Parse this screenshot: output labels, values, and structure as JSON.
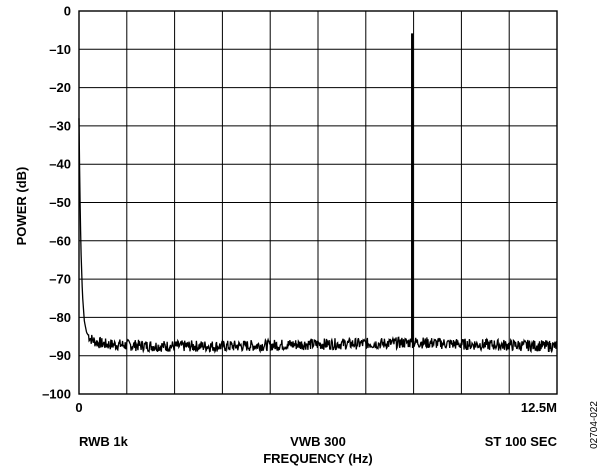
{
  "chart_data": {
    "type": "line",
    "title": "",
    "xlabel": "FREQUENCY (Hz)",
    "ylabel": "POWER (dB)",
    "xlim": [
      0,
      12.5
    ],
    "x_unit": "MHz",
    "ylim": [
      -100,
      0
    ],
    "y_ticks": [
      0,
      -10,
      -20,
      -30,
      -40,
      -50,
      -60,
      -70,
      -80,
      -90,
      -100
    ],
    "y_tick_labels": [
      "0",
      "–10",
      "–20",
      "–30",
      "–40",
      "–50",
      "–60",
      "–70",
      "–80",
      "–90",
      "–100"
    ],
    "x_tick_labels": [
      {
        "value": 0,
        "label": "0"
      },
      {
        "value": 12.5,
        "label": "12.5M"
      }
    ],
    "grid": true,
    "x_gridlines": 10,
    "annotations": {
      "left": "RWB 1k",
      "center": "VWB 300",
      "right": "ST 100 SEC"
    },
    "figure_code": "02704-022",
    "series": [
      {
        "color": "#000000",
        "noise_floor_db": -87,
        "noise_ripple_db": 1.5,
        "points": [
          {
            "x": 0.0,
            "y": -28
          },
          {
            "x": 0.02,
            "y": -45
          },
          {
            "x": 0.05,
            "y": -62
          },
          {
            "x": 0.09,
            "y": -74
          },
          {
            "x": 0.14,
            "y": -81
          },
          {
            "x": 0.2,
            "y": -84
          },
          {
            "x": 0.3,
            "y": -85.5
          },
          {
            "x": 0.45,
            "y": -86.5
          },
          {
            "x": 0.7,
            "y": -87
          },
          {
            "x": 2.0,
            "y": -87.5
          },
          {
            "x": 4.0,
            "y": -87.5
          },
          {
            "x": 6.0,
            "y": -87
          },
          {
            "x": 8.0,
            "y": -86.8
          },
          {
            "x": 8.69,
            "y": -86.5
          },
          {
            "x": 8.7,
            "y": -6
          },
          {
            "x": 8.71,
            "y": -86.5
          },
          {
            "x": 10.0,
            "y": -87
          },
          {
            "x": 12.5,
            "y": -87.5
          }
        ]
      }
    ]
  }
}
